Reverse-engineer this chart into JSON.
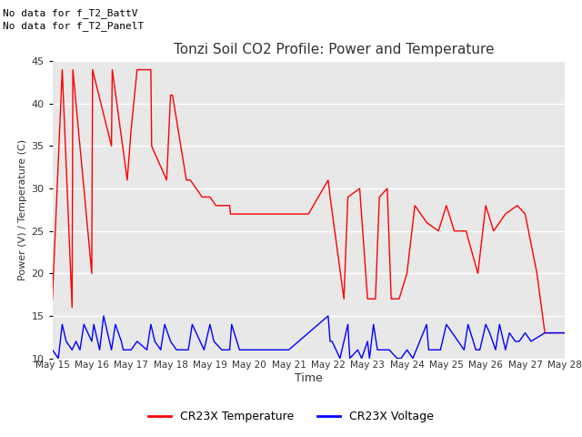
{
  "title": "Tonzi Soil CO2 Profile: Power and Temperature",
  "xlabel": "Time",
  "ylabel": "Power (V) / Temperature (C)",
  "ylim": [
    10,
    45
  ],
  "yticks": [
    10,
    15,
    20,
    25,
    30,
    35,
    40,
    45
  ],
  "no_data_text": [
    "No data for f_T2_BattV",
    "No data for f_T2_PanelT"
  ],
  "xtick_labels": [
    "May 15",
    "May 16",
    "May 17",
    "May 18",
    "May 19",
    "May 20",
    "May 21",
    "May 22",
    "May 23",
    "May 24",
    "May 25",
    "May 26",
    "May 27",
    "May 28"
  ],
  "legend_entries": [
    "CR23X Temperature",
    "CR23X Voltage"
  ],
  "legend_colors": [
    "red",
    "blue"
  ],
  "red_line_color": "red",
  "blue_line_color": "blue",
  "background_color": "#ffffff",
  "plot_bg_color": "#e8e8e8",
  "grid_color": "#ffffff",
  "annotation_box_color": "#ffff99",
  "annotation_box_edge": "red",
  "red_x": [
    0.0,
    0.25,
    0.5,
    0.52,
    1.0,
    1.02,
    1.5,
    1.52,
    1.9,
    2.0,
    2.15,
    2.5,
    2.52,
    2.9,
    3.0,
    3.05,
    3.4,
    3.5,
    3.8,
    3.9,
    4.0,
    4.15,
    4.5,
    4.52,
    5.0,
    5.2,
    5.5,
    5.8,
    6.0,
    6.5,
    7.0,
    7.05,
    7.4,
    7.5,
    7.8,
    8.0,
    8.2,
    8.3,
    8.5,
    8.6,
    8.8,
    9.0,
    9.2,
    9.5,
    9.8,
    10.0,
    10.2,
    10.5,
    10.8,
    11.0,
    11.2,
    11.5,
    11.8,
    12.0,
    12.3,
    12.5,
    13.0
  ],
  "red_y": [
    17,
    44,
    16,
    44,
    20,
    44,
    35,
    44,
    31,
    37,
    44,
    44,
    35,
    31,
    41,
    41,
    31,
    31,
    29,
    29,
    29,
    28,
    28,
    27,
    27,
    27,
    27,
    27,
    27,
    27,
    31,
    29,
    17,
    29,
    30,
    17,
    17,
    29,
    30,
    17,
    17,
    20,
    28,
    26,
    25,
    28,
    25,
    25,
    20,
    28,
    25,
    27,
    28,
    27,
    20,
    13,
    13
  ],
  "blue_x": [
    0.0,
    0.15,
    0.25,
    0.35,
    0.5,
    0.6,
    0.7,
    0.8,
    1.0,
    1.05,
    1.2,
    1.3,
    1.5,
    1.6,
    1.75,
    1.8,
    2.0,
    2.15,
    2.4,
    2.5,
    2.6,
    2.75,
    2.85,
    3.0,
    3.15,
    3.45,
    3.55,
    3.75,
    3.85,
    4.0,
    4.1,
    4.3,
    4.5,
    4.55,
    4.75,
    4.85,
    5.0,
    5.5,
    6.0,
    6.5,
    7.0,
    7.05,
    7.1,
    7.3,
    7.5,
    7.55,
    7.75,
    7.85,
    8.0,
    8.05,
    8.15,
    8.25,
    8.3,
    8.5,
    8.55,
    8.75,
    8.85,
    9.0,
    9.15,
    9.5,
    9.55,
    9.75,
    9.85,
    10.0,
    10.15,
    10.45,
    10.55,
    10.75,
    10.85,
    11.0,
    11.1,
    11.25,
    11.35,
    11.5,
    11.6,
    11.75,
    11.85,
    12.0,
    12.15,
    12.5,
    13.0
  ],
  "blue_y": [
    11,
    10,
    14,
    12,
    11,
    12,
    11,
    14,
    12,
    14,
    11,
    15,
    11,
    14,
    12,
    11,
    11,
    12,
    11,
    14,
    12,
    11,
    14,
    12,
    11,
    11,
    14,
    12,
    11,
    14,
    12,
    11,
    11,
    14,
    11,
    11,
    11,
    11,
    11,
    13,
    15,
    12,
    12,
    10,
    14,
    10,
    11,
    10,
    12,
    10,
    14,
    11,
    11,
    11,
    11,
    10,
    10,
    11,
    10,
    14,
    11,
    11,
    11,
    14,
    13,
    11,
    14,
    11,
    11,
    14,
    13,
    11,
    14,
    11,
    13,
    12,
    12,
    13,
    12,
    13,
    13
  ]
}
